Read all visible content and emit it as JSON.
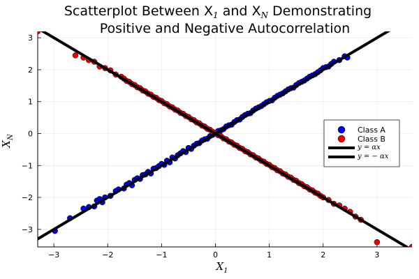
{
  "chart_data": {
    "type": "scatter",
    "title_line1": "Scatterplot Between X",
    "title_line1_sub1": "1",
    "title_line1_mid": " and X",
    "title_line1_sub2": "N",
    "title_line1_end": " Demonstrating",
    "title_line2": "Positive and Negative Autocorrelation",
    "xlabel": "X",
    "xlabel_sub": "1",
    "ylabel": "X",
    "ylabel_sub": "N",
    "xlim": [
      -3.3,
      3.65
    ],
    "ylim": [
      -3.55,
      3.2
    ],
    "xticks": [
      -3,
      -2,
      -1,
      0,
      1,
      2,
      3
    ],
    "yticks": [
      -3,
      -2,
      -1,
      0,
      1,
      2,
      3
    ],
    "grid": true,
    "legend_position": "right",
    "lines": [
      {
        "name": "y = αx",
        "slope": 1,
        "color": "#000000"
      },
      {
        "name": "y = − αx",
        "slope": -1,
        "color": "#000000"
      }
    ],
    "series": [
      {
        "name": "Class A",
        "color": "#0000ee",
        "points": [
          [
            -2.98,
            -3.05
          ],
          [
            -2.7,
            -2.65
          ],
          [
            -2.45,
            -2.35
          ],
          [
            -2.35,
            -2.3
          ],
          [
            -2.25,
            -2.28
          ],
          [
            -2.2,
            -2.1
          ],
          [
            -2.15,
            -2.05
          ],
          [
            -2.1,
            -2.15
          ],
          [
            -2.05,
            -2.0
          ],
          [
            -1.95,
            -1.95
          ],
          [
            -1.85,
            -1.8
          ],
          [
            -1.8,
            -1.75
          ],
          [
            -1.7,
            -1.72
          ],
          [
            -1.65,
            -1.6
          ],
          [
            -1.6,
            -1.55
          ],
          [
            -1.55,
            -1.62
          ],
          [
            -1.5,
            -1.45
          ],
          [
            -1.45,
            -1.4
          ],
          [
            -1.4,
            -1.42
          ],
          [
            -1.35,
            -1.3
          ],
          [
            -1.3,
            -1.28
          ],
          [
            -1.25,
            -1.2
          ],
          [
            -1.2,
            -1.25
          ],
          [
            -1.15,
            -1.1
          ],
          [
            -1.1,
            -1.08
          ],
          [
            -1.05,
            -1.02
          ],
          [
            -1.0,
            -0.95
          ],
          [
            -0.95,
            -0.98
          ],
          [
            -0.9,
            -0.85
          ],
          [
            -0.85,
            -0.9
          ],
          [
            -0.8,
            -0.75
          ],
          [
            -0.75,
            -0.78
          ],
          [
            -0.7,
            -0.68
          ],
          [
            -0.65,
            -0.62
          ],
          [
            -0.6,
            -0.55
          ],
          [
            -0.55,
            -0.58
          ],
          [
            -0.5,
            -0.45
          ],
          [
            -0.45,
            -0.48
          ],
          [
            -0.4,
            -0.38
          ],
          [
            -0.35,
            -0.32
          ],
          [
            -0.3,
            -0.3
          ],
          [
            -0.25,
            -0.22
          ],
          [
            -0.2,
            -0.18
          ],
          [
            -0.15,
            -0.16
          ],
          [
            -0.1,
            -0.08
          ],
          [
            -0.05,
            -0.04
          ],
          [
            0.0,
            0.02
          ],
          [
            0.05,
            0.08
          ],
          [
            0.1,
            0.1
          ],
          [
            0.15,
            0.14
          ],
          [
            0.2,
            0.22
          ],
          [
            0.25,
            0.26
          ],
          [
            0.3,
            0.28
          ],
          [
            0.35,
            0.36
          ],
          [
            0.4,
            0.42
          ],
          [
            0.45,
            0.44
          ],
          [
            0.5,
            0.52
          ],
          [
            0.55,
            0.58
          ],
          [
            0.6,
            0.62
          ],
          [
            0.65,
            0.64
          ],
          [
            0.7,
            0.72
          ],
          [
            0.75,
            0.78
          ],
          [
            0.8,
            0.82
          ],
          [
            0.85,
            0.86
          ],
          [
            0.9,
            0.92
          ],
          [
            0.95,
            0.98
          ],
          [
            1.0,
            1.02
          ],
          [
            1.05,
            1.04
          ],
          [
            1.1,
            1.12
          ],
          [
            1.15,
            1.18
          ],
          [
            1.2,
            1.22
          ],
          [
            1.25,
            1.26
          ],
          [
            1.3,
            1.32
          ],
          [
            1.35,
            1.38
          ],
          [
            1.4,
            1.42
          ],
          [
            1.45,
            1.44
          ],
          [
            1.5,
            1.52
          ],
          [
            1.55,
            1.58
          ],
          [
            1.6,
            1.62
          ],
          [
            1.65,
            1.66
          ],
          [
            1.7,
            1.72
          ],
          [
            1.75,
            1.78
          ],
          [
            1.8,
            1.82
          ],
          [
            1.85,
            1.86
          ],
          [
            1.9,
            1.92
          ],
          [
            1.95,
            1.98
          ],
          [
            2.0,
            2.05
          ],
          [
            2.05,
            2.08
          ],
          [
            2.1,
            2.1
          ],
          [
            2.15,
            2.18
          ],
          [
            2.2,
            2.25
          ],
          [
            2.3,
            2.3
          ],
          [
            2.4,
            2.42
          ],
          [
            2.45,
            2.38
          ]
        ]
      },
      {
        "name": "Class B",
        "color": "#ee0000",
        "points": [
          [
            -3.3,
            3.2
          ],
          [
            -2.6,
            2.45
          ],
          [
            -2.45,
            2.38
          ],
          [
            -2.35,
            2.3
          ],
          [
            -2.25,
            2.25
          ],
          [
            -2.15,
            2.1
          ],
          [
            -2.05,
            2.05
          ],
          [
            -1.95,
            1.98
          ],
          [
            -1.85,
            1.85
          ],
          [
            -1.75,
            1.78
          ],
          [
            -1.7,
            1.72
          ],
          [
            -1.65,
            1.65
          ],
          [
            -1.6,
            1.62
          ],
          [
            -1.55,
            1.55
          ],
          [
            -1.5,
            1.52
          ],
          [
            -1.45,
            1.45
          ],
          [
            -1.4,
            1.42
          ],
          [
            -1.35,
            1.35
          ],
          [
            -1.3,
            1.32
          ],
          [
            -1.25,
            1.25
          ],
          [
            -1.2,
            1.22
          ],
          [
            -1.15,
            1.15
          ],
          [
            -1.1,
            1.12
          ],
          [
            -1.05,
            1.05
          ],
          [
            -1.0,
            1.02
          ],
          [
            -0.95,
            0.95
          ],
          [
            -0.9,
            0.92
          ],
          [
            -0.85,
            0.85
          ],
          [
            -0.8,
            0.82
          ],
          [
            -0.75,
            0.75
          ],
          [
            -0.7,
            0.72
          ],
          [
            -0.65,
            0.65
          ],
          [
            -0.6,
            0.62
          ],
          [
            -0.55,
            0.55
          ],
          [
            -0.5,
            0.52
          ],
          [
            -0.45,
            0.45
          ],
          [
            -0.4,
            0.42
          ],
          [
            -0.35,
            0.35
          ],
          [
            -0.3,
            0.32
          ],
          [
            -0.25,
            0.25
          ],
          [
            -0.2,
            0.22
          ],
          [
            -0.15,
            0.15
          ],
          [
            -0.1,
            0.12
          ],
          [
            -0.05,
            0.05
          ],
          [
            0.0,
            0.02
          ],
          [
            0.05,
            -0.05
          ],
          [
            0.1,
            -0.08
          ],
          [
            0.15,
            -0.15
          ],
          [
            0.2,
            -0.18
          ],
          [
            0.25,
            -0.25
          ],
          [
            0.3,
            -0.28
          ],
          [
            0.35,
            -0.35
          ],
          [
            0.4,
            -0.38
          ],
          [
            0.45,
            -0.45
          ],
          [
            0.5,
            -0.48
          ],
          [
            0.55,
            -0.55
          ],
          [
            0.6,
            -0.58
          ],
          [
            0.65,
            -0.65
          ],
          [
            0.7,
            -0.68
          ],
          [
            0.75,
            -0.75
          ],
          [
            0.8,
            -0.78
          ],
          [
            0.85,
            -0.85
          ],
          [
            0.9,
            -0.88
          ],
          [
            0.95,
            -0.95
          ],
          [
            1.0,
            -0.98
          ],
          [
            1.05,
            -1.05
          ],
          [
            1.1,
            -1.08
          ],
          [
            1.15,
            -1.15
          ],
          [
            1.2,
            -1.18
          ],
          [
            1.25,
            -1.25
          ],
          [
            1.3,
            -1.28
          ],
          [
            1.35,
            -1.35
          ],
          [
            1.4,
            -1.38
          ],
          [
            1.45,
            -1.45
          ],
          [
            1.5,
            -1.48
          ],
          [
            1.55,
            -1.55
          ],
          [
            1.6,
            -1.58
          ],
          [
            1.65,
            -1.65
          ],
          [
            1.7,
            -1.68
          ],
          [
            1.75,
            -1.75
          ],
          [
            1.8,
            -1.78
          ],
          [
            1.85,
            -1.85
          ],
          [
            1.9,
            -1.88
          ],
          [
            1.95,
            -1.95
          ],
          [
            2.0,
            -2.0
          ],
          [
            2.1,
            -2.08
          ],
          [
            2.2,
            -2.2
          ],
          [
            2.3,
            -2.25
          ],
          [
            2.4,
            -2.35
          ],
          [
            2.5,
            -2.45
          ],
          [
            2.6,
            -2.6
          ],
          [
            2.7,
            -2.7
          ],
          [
            3.0,
            -3.4
          ],
          [
            3.65,
            -3.55
          ]
        ]
      }
    ]
  }
}
